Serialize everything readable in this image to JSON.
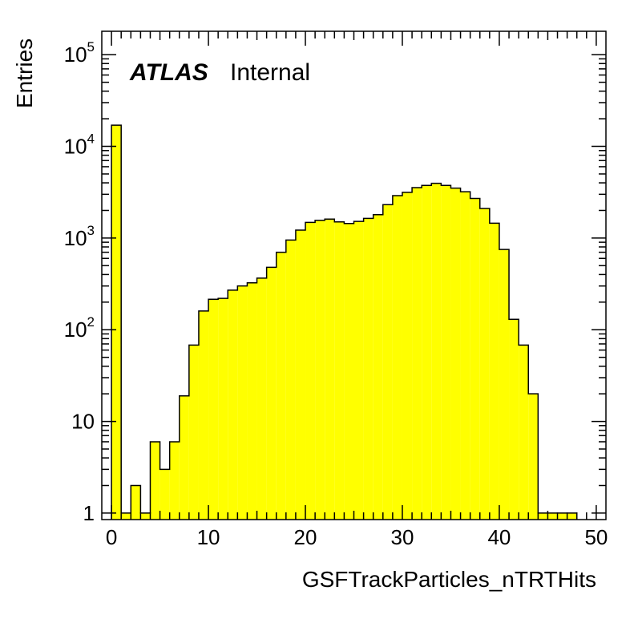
{
  "colors": {
    "fill": "#ffff00",
    "line": "#000000",
    "background": "#ffffff"
  },
  "label": {
    "atlas": "ATLAS",
    "status": "Internal"
  },
  "chart_data": {
    "type": "bar",
    "title": "",
    "xlabel": "GSFTrackParticles_nTRTHits",
    "ylabel": "Entries",
    "xlim": [
      -1,
      51
    ],
    "ylim": [
      0.85,
      180000
    ],
    "log_y": true,
    "grid": false,
    "legend": "none",
    "bin_width": 1,
    "x": [
      0,
      1,
      2,
      3,
      4,
      5,
      6,
      7,
      8,
      9,
      10,
      11,
      12,
      13,
      14,
      15,
      16,
      17,
      18,
      19,
      20,
      21,
      22,
      23,
      24,
      25,
      26,
      27,
      28,
      29,
      30,
      31,
      32,
      33,
      34,
      35,
      36,
      37,
      38,
      39,
      40,
      41,
      42,
      43,
      44,
      45,
      46,
      47
    ],
    "values": [
      17000,
      1,
      2,
      1,
      6,
      3,
      6,
      19,
      68,
      160,
      215,
      220,
      270,
      300,
      325,
      365,
      480,
      700,
      950,
      1220,
      1480,
      1560,
      1610,
      1500,
      1440,
      1520,
      1640,
      1800,
      2310,
      2900,
      3150,
      3550,
      3750,
      3950,
      3750,
      3500,
      3200,
      2700,
      2100,
      1450,
      750,
      130,
      68,
      20,
      1,
      1,
      1,
      1
    ],
    "xticks": [
      "0",
      "10",
      "20",
      "30",
      "40",
      "50"
    ],
    "yticks": [
      {
        "base": "10",
        "exp": "5",
        "value": 100000
      },
      {
        "base": "10",
        "exp": "4",
        "value": 10000
      },
      {
        "base": "10",
        "exp": "3",
        "value": 1000
      },
      {
        "base": "10",
        "exp": "2",
        "value": 100
      },
      {
        "base": "10",
        "exp": "",
        "value": 10
      },
      {
        "base": "1",
        "exp": "",
        "value": 1
      }
    ]
  }
}
